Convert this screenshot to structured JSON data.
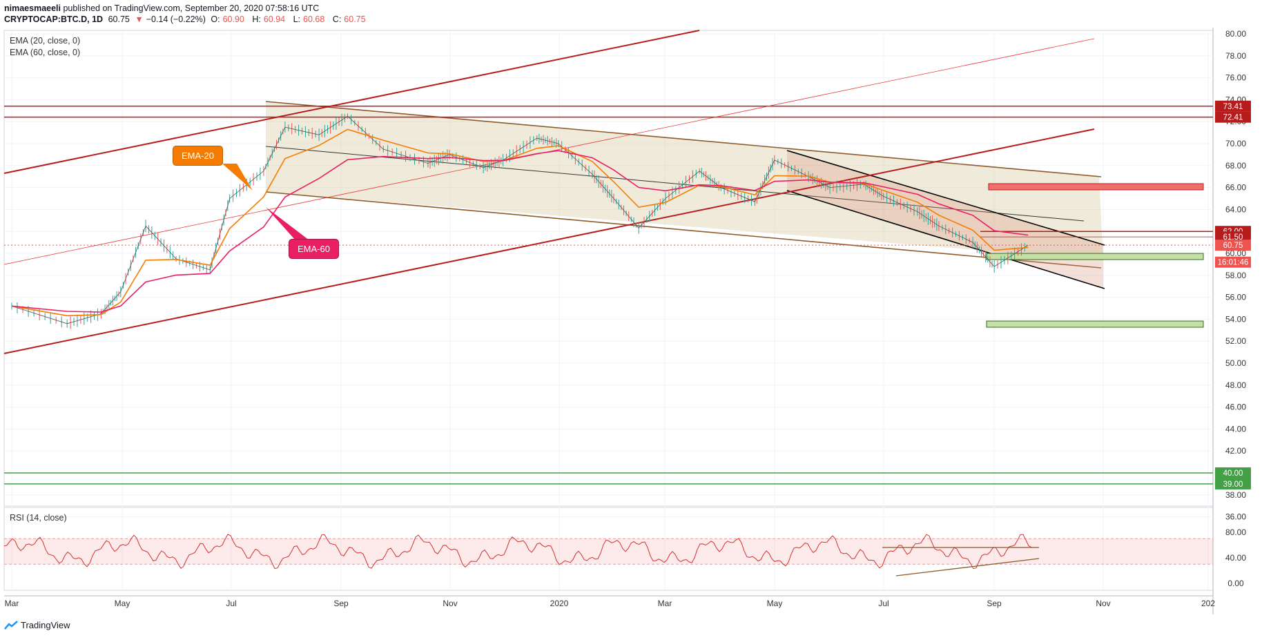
{
  "header": {
    "user": "nimaesmaeeli",
    "published": " published on TradingView.com, September 20, 2020 07:58:16 UTC",
    "symbol": "CRYPTOCAP:BTC.D, 1D",
    "last": "60.75",
    "change_arrow": "▼",
    "change": "−0.14 (−0.22%)",
    "o_label": "O:",
    "o": "60.90",
    "h_label": "H:",
    "h": "60.94",
    "l_label": "L:",
    "l": "60.68",
    "c_label": "C:",
    "c": "60.75"
  },
  "indicators": {
    "ema20": "EMA (20, close, 0)",
    "ema60": "EMA (60, close, 0)",
    "rsi": "RSI (14, close)"
  },
  "annotations": {
    "ema20_label": "EMA-20",
    "ema60_label": "EMA-60"
  },
  "footer": {
    "brand": "TradingView"
  },
  "colors": {
    "up": "#26a69a",
    "down": "#ef5350",
    "ema20": "#f57c00",
    "ema60": "#e91e63",
    "trend": "#b71c1c",
    "channel": "#8d5a2b",
    "rsi": "#d32f2f",
    "support": "#43a047"
  },
  "chart_data": {
    "type": "line",
    "title": "CRYPTOCAP:BTC.D, 1D",
    "y_axis_ticks": [
      "80.00",
      "78.00",
      "76.00",
      "74.00",
      "72.00",
      "70.00",
      "68.00",
      "66.00",
      "64.00",
      "62.00",
      "60.00",
      "58.00",
      "56.00",
      "54.00",
      "52.00",
      "50.00",
      "48.00",
      "46.00",
      "44.00",
      "42.00",
      "40.00",
      "38.00",
      "36.00"
    ],
    "x_axis_ticks": [
      "Mar",
      "May",
      "Jul",
      "Sep",
      "Nov",
      "2020",
      "Mar",
      "May",
      "Jul",
      "Sep",
      "Nov",
      "202"
    ],
    "ylim": [
      35,
      80
    ],
    "price_labels": [
      {
        "text": "73.41",
        "value": 73.41,
        "color": "#b71c1c"
      },
      {
        "text": "72.41",
        "value": 72.41,
        "color": "#b71c1c"
      },
      {
        "text": "62.00",
        "value": 62.0,
        "color": "#b71c1c"
      },
      {
        "text": "61.50",
        "value": 61.5,
        "color": "#b71c1c"
      },
      {
        "text": "60.75",
        "value": 60.75,
        "color": "#ef5350"
      },
      {
        "text": "16:01:46",
        "value": 59.2,
        "color": "#ef5350"
      },
      {
        "text": "40.00",
        "value": 40.0,
        "color": "#43a047"
      },
      {
        "text": "39.00",
        "value": 39.0,
        "color": "#43a047"
      }
    ],
    "price_series": [
      {
        "date": "2019-03",
        "value": 55.2
      },
      {
        "date": "2019-04",
        "value": 53.6
      },
      {
        "date": "2019-04-20",
        "value": 54.5
      },
      {
        "date": "2019-05",
        "value": 56.5
      },
      {
        "date": "2019-05-15",
        "value": 62.5
      },
      {
        "date": "2019-06",
        "value": 59.5
      },
      {
        "date": "2019-06-20",
        "value": 58.5
      },
      {
        "date": "2019-07",
        "value": 65.0
      },
      {
        "date": "2019-07-20",
        "value": 67.5
      },
      {
        "date": "2019-08",
        "value": 71.5
      },
      {
        "date": "2019-08-20",
        "value": 70.8
      },
      {
        "date": "2019-09-05",
        "value": 72.5
      },
      {
        "date": "2019-09-25",
        "value": 69.5
      },
      {
        "date": "2019-10-20",
        "value": 68.2
      },
      {
        "date": "2019-11",
        "value": 69.0
      },
      {
        "date": "2019-11-20",
        "value": 67.8
      },
      {
        "date": "2019-12",
        "value": 68.5
      },
      {
        "date": "2019-12-20",
        "value": 70.5
      },
      {
        "date": "2020-01",
        "value": 70.0
      },
      {
        "date": "2020-01-20",
        "value": 67.2
      },
      {
        "date": "2020-02",
        "value": 65.0
      },
      {
        "date": "2020-02-15",
        "value": 62.3
      },
      {
        "date": "2020-03",
        "value": 65.0
      },
      {
        "date": "2020-03-20",
        "value": 67.5
      },
      {
        "date": "2020-04",
        "value": 66.0
      },
      {
        "date": "2020-04-20",
        "value": 64.7
      },
      {
        "date": "2020-05",
        "value": 68.5
      },
      {
        "date": "2020-05-20",
        "value": 67.0
      },
      {
        "date": "2020-06",
        "value": 66.0
      },
      {
        "date": "2020-06-20",
        "value": 66.3
      },
      {
        "date": "2020-07",
        "value": 65.2
      },
      {
        "date": "2020-07-20",
        "value": 63.8
      },
      {
        "date": "2020-08",
        "value": 62.5
      },
      {
        "date": "2020-08-20",
        "value": 61.0
      },
      {
        "date": "2020-09",
        "value": 58.8
      },
      {
        "date": "2020-09-20",
        "value": 60.75
      }
    ],
    "rsi_ticks": [
      "80.00",
      "40.00",
      "0.00"
    ],
    "rsi_band": [
      30,
      70
    ]
  }
}
